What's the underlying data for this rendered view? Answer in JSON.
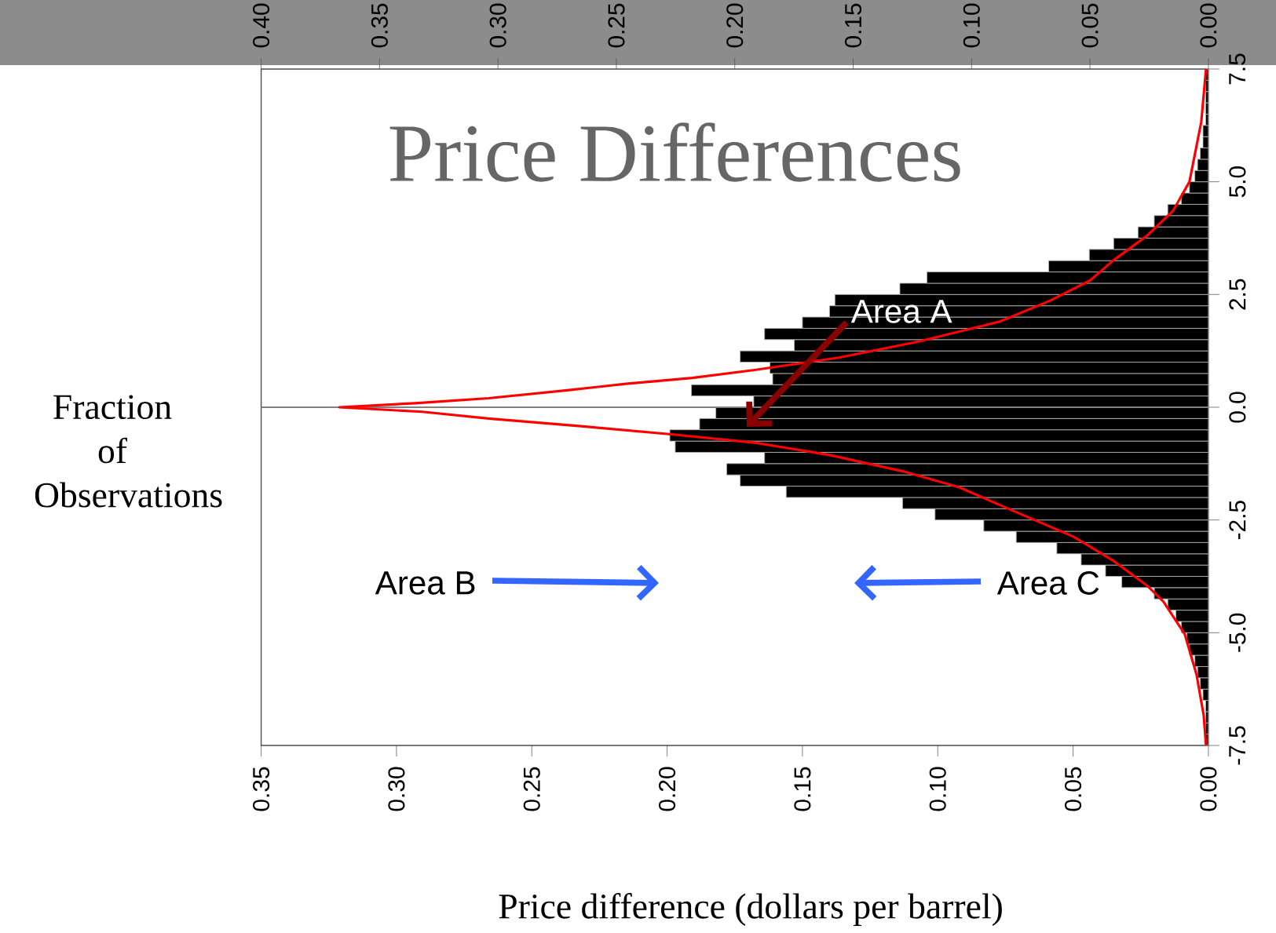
{
  "chart_data": {
    "type": "histogram",
    "orientation": "horizontal",
    "title": "Price Differences",
    "xlabel": "Price difference (dollars per barrel)",
    "ylabel": "Fraction of Observations",
    "xlim": [
      0.35,
      0
    ],
    "xticks": [
      {
        "value": 0.35,
        "label": "0.35"
      },
      {
        "value": 0.3,
        "label": "0.30"
      },
      {
        "value": 0.25,
        "label": "0.25"
      },
      {
        "value": 0.2,
        "label": "0.20"
      },
      {
        "value": 0.15,
        "label": "0.15"
      },
      {
        "value": 0.1,
        "label": "0.10"
      },
      {
        "value": 0.05,
        "label": "0.05"
      },
      {
        "value": 0,
        "label": "0.00"
      }
    ],
    "x2lim": [
      0.4,
      0
    ],
    "x2ticks": [
      {
        "value": 0.4,
        "label": "0.40"
      },
      {
        "value": 0.35,
        "label": "0.35"
      },
      {
        "value": 0.3,
        "label": "0.30"
      },
      {
        "value": 0.25,
        "label": "0.25"
      },
      {
        "value": 0.2,
        "label": "0.20"
      },
      {
        "value": 0.15,
        "label": "0.15"
      },
      {
        "value": 0.1,
        "label": "0.10"
      },
      {
        "value": 0.05,
        "label": "0.05"
      },
      {
        "value": 0,
        "label": "0.00"
      }
    ],
    "ylim": [
      -7.5,
      7.5
    ],
    "yticks": [
      -7.5,
      {
        "value": -5,
        "label": "-5.0"
      },
      -2.5,
      {
        "value": 0,
        "label": "0.0"
      },
      2.5,
      {
        "value": 5,
        "label": "5.0"
      },
      7.5
    ],
    "series": [
      {
        "color": "#000000",
        "bins": [
          -7.5,
          -7.25,
          -7,
          -6.75,
          -6.5,
          -6.25,
          -6,
          -5.75,
          -5.5,
          -5.25,
          -5,
          -4.75,
          -4.5,
          -4.25,
          -4,
          -3.75,
          -3.5,
          -3.25,
          -3,
          -2.75,
          -2.5,
          -2.25,
          -2,
          -1.75,
          -1.5,
          -1.25,
          -1,
          -0.75,
          -0.5,
          -0.25,
          0,
          0.25,
          0.5,
          0.75,
          1,
          1.25,
          1.5,
          1.75,
          2,
          2.25,
          2.5,
          2.75,
          3,
          3.25,
          3.5,
          3.75,
          4,
          4.25,
          4.5,
          4.75,
          5,
          5.25,
          5.5,
          5.75,
          6,
          6.25,
          6.5,
          6.75,
          7,
          7.25,
          7.5
        ],
        "values": [
          0.001,
          0.001,
          0.001,
          0.001,
          0.002,
          0.003,
          0.004,
          0.005,
          0.007,
          0.008,
          0.01,
          0.012,
          0.015,
          0.02,
          0.032,
          0.038,
          0.047,
          0.056,
          0.071,
          0.083,
          0.101,
          0.113,
          0.156,
          0.173,
          0.178,
          0.164,
          0.197,
          0.199,
          0.188,
          0.182,
          0.168,
          0.191,
          0.161,
          0.162,
          0.173,
          0.153,
          0.164,
          0.15,
          0.14,
          0.138,
          0.114,
          0.104,
          0.059,
          0.044,
          0.035,
          0.026,
          0.02,
          0.015,
          0.01,
          0.007,
          0.005,
          0.004,
          0.003,
          0.002,
          0.002,
          0.001,
          0.001,
          0.001,
          0.001,
          0.001
        ]
      },
      {
        "type": "line",
        "axis": "x2",
        "color": "#ff0000",
        "x": [
          -7.5,
          -6.83,
          -5.93,
          -5.03,
          -4.31,
          -3.95,
          -3.41,
          -2.87,
          -2.33,
          -1.78,
          -1.42,
          -1.06,
          -0.79,
          -0.61,
          -0.43,
          -0.25,
          -0.1,
          0,
          0.09,
          0.2,
          0.38,
          0.52,
          0.65,
          0.83,
          1.1,
          1.46,
          1.9,
          2.36,
          2.81,
          3.26,
          3.8,
          4.35,
          5.0,
          6.33,
          7.5
        ],
        "values": [
          0.001,
          0.002,
          0.005,
          0.01,
          0.019,
          0.026,
          0.04,
          0.057,
          0.081,
          0.105,
          0.129,
          0.16,
          0.191,
          0.225,
          0.263,
          0.304,
          0.332,
          0.367,
          0.335,
          0.304,
          0.27,
          0.246,
          0.218,
          0.191,
          0.156,
          0.122,
          0.088,
          0.067,
          0.05,
          0.04,
          0.026,
          0.015,
          0.008,
          0.003,
          0.001
        ]
      }
    ],
    "ref_lines": [
      {
        "axis": "y",
        "value": 0,
        "color": "#808080"
      }
    ],
    "annotations": [
      "Area A",
      "Area B",
      "Area C"
    ]
  }
}
